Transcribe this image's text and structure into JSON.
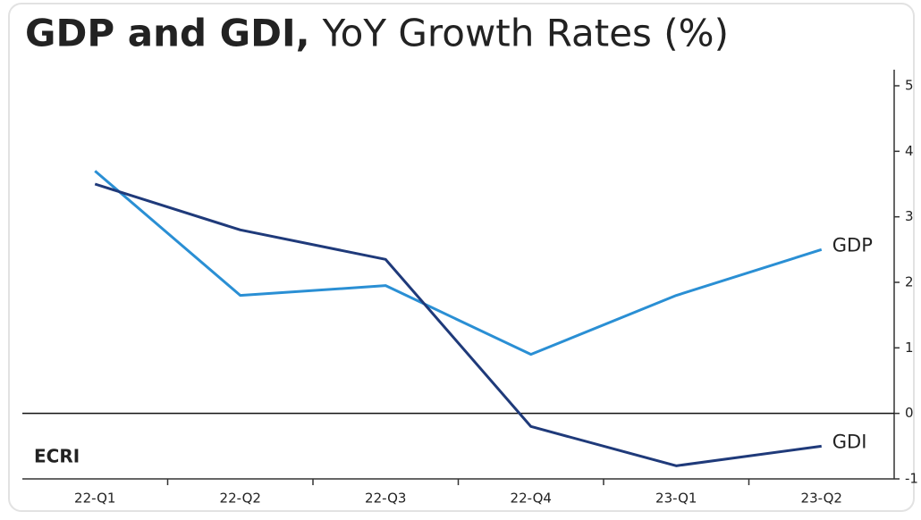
{
  "chart_data": {
    "type": "line",
    "title": "GDP and GDI,",
    "subtitle": "YoY Growth Rates (%)",
    "logo": "ECRI",
    "categories": [
      "22-Q1",
      "22-Q2",
      "22-Q3",
      "22-Q4",
      "23-Q1",
      "23-Q2"
    ],
    "series": [
      {
        "name": "GDP",
        "color": "#2a8fd4",
        "values": [
          3.7,
          1.8,
          1.95,
          0.9,
          1.8,
          2.5
        ]
      },
      {
        "name": "GDI",
        "color": "#1f3a7a",
        "values": [
          3.5,
          2.8,
          2.35,
          -0.2,
          -0.8,
          -0.5
        ]
      }
    ],
    "ylim": [
      -1,
      5
    ],
    "yticks": [
      -1,
      0,
      1,
      2,
      3,
      4,
      5
    ]
  }
}
